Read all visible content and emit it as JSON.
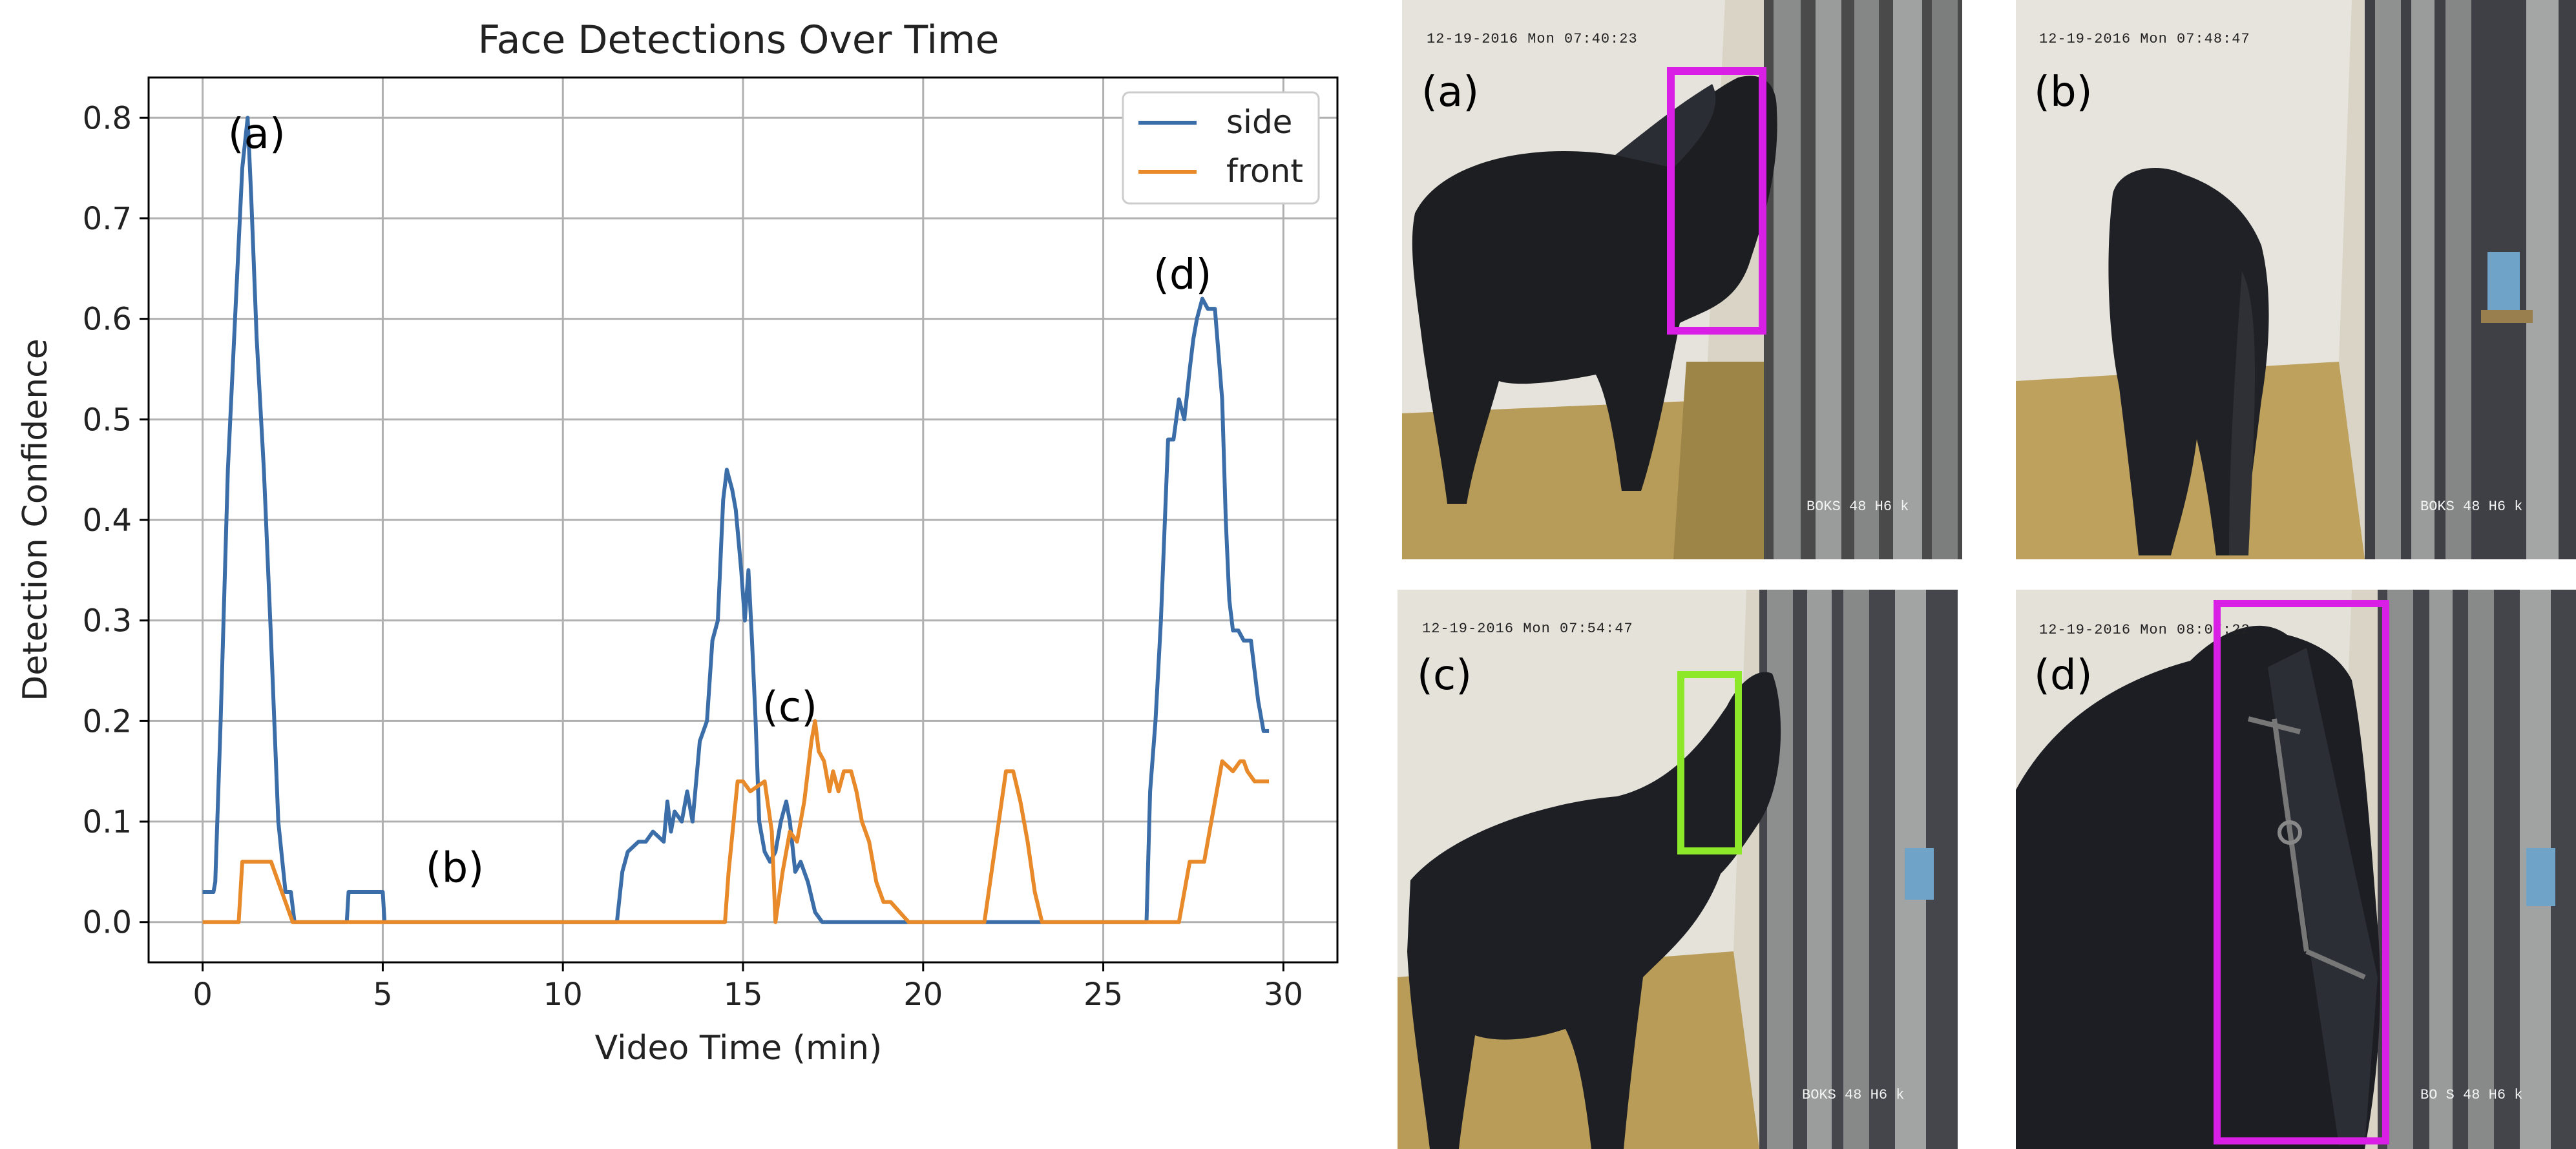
{
  "chart_data": {
    "type": "line",
    "title": "Face Detections Over Time",
    "xlabel": "Video Time (min)",
    "ylabel": "Detection Confidence",
    "xlim": [
      -1.5,
      31.5
    ],
    "ylim": [
      -0.04,
      0.84
    ],
    "xticks": [
      0,
      5,
      10,
      15,
      20,
      25,
      30
    ],
    "yticks": [
      0.0,
      0.1,
      0.2,
      0.3,
      0.4,
      0.5,
      0.6,
      0.7,
      0.8
    ],
    "ytick_labels": [
      "0.0",
      "0.1",
      "0.2",
      "0.3",
      "0.4",
      "0.5",
      "0.6",
      "0.7",
      "0.8"
    ],
    "grid": true,
    "legend_position": "top-right",
    "series": [
      {
        "name": "side",
        "color": "#3b6ea8",
        "x": [
          0,
          0.3,
          0.35,
          0.5,
          0.7,
          0.9,
          1.1,
          1.25,
          1.35,
          1.5,
          1.7,
          1.9,
          2.1,
          2.3,
          2.45,
          2.55,
          2.7,
          4,
          4.05,
          5,
          5.05,
          11.5,
          11.65,
          11.8,
          12.1,
          12.3,
          12.5,
          12.8,
          12.9,
          13.0,
          13.1,
          13.3,
          13.45,
          13.6,
          13.8,
          14.0,
          14.15,
          14.3,
          14.45,
          14.55,
          14.7,
          14.8,
          14.95,
          15.05,
          15.15,
          15.25,
          15.35,
          15.45,
          15.6,
          15.75,
          15.9,
          16.05,
          16.2,
          16.3,
          16.45,
          16.6,
          16.8,
          17.0,
          17.2,
          17.4,
          22.6,
          22.7,
          23.2,
          23.4,
          26.2,
          26.3,
          26.45,
          26.6,
          26.8,
          26.95,
          27.1,
          27.25,
          27.4,
          27.5,
          27.6,
          27.75,
          27.9,
          28.1,
          28.3,
          28.4,
          28.5,
          28.6,
          28.75,
          28.9,
          29.1,
          29.3,
          29.45,
          29.6
        ],
        "y": [
          0.03,
          0.03,
          0.04,
          0.2,
          0.45,
          0.6,
          0.75,
          0.8,
          0.72,
          0.58,
          0.45,
          0.28,
          0.1,
          0.03,
          0.03,
          0.0,
          0.0,
          0.0,
          0.03,
          0.03,
          0.0,
          0.0,
          0.05,
          0.07,
          0.08,
          0.08,
          0.09,
          0.08,
          0.12,
          0.09,
          0.11,
          0.1,
          0.13,
          0.1,
          0.18,
          0.2,
          0.28,
          0.3,
          0.42,
          0.45,
          0.43,
          0.41,
          0.35,
          0.3,
          0.35,
          0.28,
          0.2,
          0.1,
          0.07,
          0.06,
          0.07,
          0.1,
          0.12,
          0.1,
          0.05,
          0.06,
          0.04,
          0.01,
          0.0,
          0.0,
          0.0,
          0.0,
          0.0,
          0.0,
          0.0,
          0.13,
          0.2,
          0.3,
          0.48,
          0.48,
          0.52,
          0.5,
          0.55,
          0.58,
          0.6,
          0.62,
          0.61,
          0.61,
          0.52,
          0.4,
          0.32,
          0.29,
          0.29,
          0.28,
          0.28,
          0.22,
          0.19,
          0.19
        ]
      },
      {
        "name": "front",
        "color": "#e8892a",
        "x": [
          0,
          1.0,
          1.1,
          1.9,
          2.1,
          2.3,
          2.5,
          14.5,
          14.6,
          14.85,
          15.0,
          15.2,
          15.6,
          15.8,
          15.9,
          16.1,
          16.3,
          16.5,
          16.7,
          16.9,
          17.0,
          17.1,
          17.25,
          17.4,
          17.5,
          17.65,
          17.8,
          18.0,
          18.15,
          18.3,
          18.5,
          18.7,
          18.9,
          19.1,
          19.35,
          19.6,
          19.75,
          21.7,
          21.9,
          22.1,
          22.3,
          22.5,
          22.7,
          22.9,
          23.1,
          23.3,
          27.1,
          27.4,
          27.6,
          27.8,
          28.0,
          28.3,
          28.6,
          28.8,
          28.9,
          29.0,
          29.2,
          29.6
        ],
        "y": [
          0.0,
          0.0,
          0.06,
          0.06,
          0.04,
          0.02,
          0.0,
          0.0,
          0.05,
          0.14,
          0.14,
          0.13,
          0.14,
          0.09,
          0.0,
          0.05,
          0.09,
          0.08,
          0.12,
          0.18,
          0.2,
          0.17,
          0.16,
          0.13,
          0.15,
          0.13,
          0.15,
          0.15,
          0.13,
          0.1,
          0.08,
          0.04,
          0.02,
          0.02,
          0.01,
          0.0,
          0.0,
          0.0,
          0.05,
          0.1,
          0.15,
          0.15,
          0.12,
          0.08,
          0.03,
          0.0,
          0.0,
          0.06,
          0.06,
          0.06,
          0.1,
          0.16,
          0.15,
          0.16,
          0.16,
          0.15,
          0.14,
          0.14
        ]
      }
    ],
    "annotations": [
      {
        "text": "(a)",
        "x": 1.5,
        "y": 0.77
      },
      {
        "text": "(b)",
        "x": 7.0,
        "y": 0.04
      },
      {
        "text": "(c)",
        "x": 16.3,
        "y": 0.2
      },
      {
        "text": "(d)",
        "x": 27.2,
        "y": 0.63
      }
    ]
  },
  "frames": [
    {
      "label": "(a)",
      "timestamp": "12-19-2016 Mon 07:40:23",
      "camera": "BOKS 48 H6 k",
      "box": "magenta"
    },
    {
      "label": "(b)",
      "timestamp": "12-19-2016 Mon 07:48:47",
      "camera": "BOKS 48 H6 k",
      "box": "none"
    },
    {
      "label": "(c)",
      "timestamp": "12-19-2016 Mon 07:54:47",
      "camera": "BOKS 48 H6 k",
      "box": "green"
    },
    {
      "label": "(d)",
      "timestamp": "12-19-2016 Mon 08:07:22",
      "camera": "BO S 48 H6 k",
      "box": "magenta"
    }
  ],
  "colors": {
    "magenta_box": "#d91fe6",
    "green_box": "#8ee82a"
  }
}
